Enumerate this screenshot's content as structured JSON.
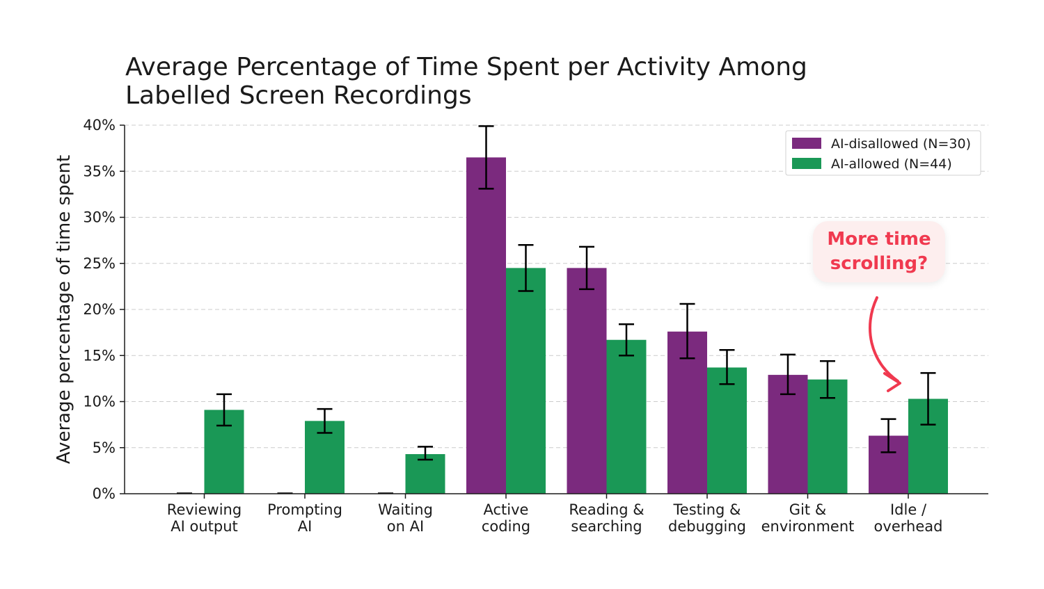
{
  "chart_data": {
    "type": "bar",
    "title_lines": [
      "Average Percentage of Time Spent per Activity Among",
      "Labelled Screen Recordings"
    ],
    "ylabel": "Average percentage of time spent",
    "xlabel": "",
    "ylim": [
      0,
      40
    ],
    "yticks": [
      "0%",
      "5%",
      "10%",
      "15%",
      "20%",
      "25%",
      "30%",
      "35%",
      "40%"
    ],
    "ytick_values": [
      0,
      5,
      10,
      15,
      20,
      25,
      30,
      35,
      40
    ],
    "grid": "horizontal dashed",
    "legend_position": "top-right",
    "categories": [
      [
        "Reviewing",
        "AI output"
      ],
      [
        "Prompting",
        "AI"
      ],
      [
        "Waiting",
        "on AI"
      ],
      [
        "Active",
        "coding"
      ],
      [
        "Reading &",
        "searching"
      ],
      [
        "Testing &",
        "debugging"
      ],
      [
        "Git &",
        "environment"
      ],
      [
        "Idle /",
        "overhead"
      ]
    ],
    "series": [
      {
        "name": "AI-disallowed (N=30)",
        "color": "#7b2a7e",
        "values": [
          0,
          0,
          0,
          36.5,
          24.5,
          17.6,
          12.9,
          6.3
        ],
        "err_low": [
          0,
          0,
          0,
          33.1,
          22.2,
          14.7,
          10.8,
          4.5
        ],
        "err_high": [
          0,
          0,
          0,
          39.9,
          26.8,
          20.6,
          15.1,
          8.1
        ]
      },
      {
        "name": "AI-allowed (N=44)",
        "color": "#1a9856",
        "values": [
          9.1,
          7.9,
          4.3,
          24.5,
          16.7,
          13.7,
          12.4,
          10.3
        ],
        "err_low": [
          7.4,
          6.6,
          3.7,
          22.0,
          15.0,
          11.9,
          10.4,
          7.5
        ],
        "err_high": [
          10.8,
          9.2,
          5.1,
          27.0,
          18.4,
          15.6,
          14.4,
          13.1
        ]
      }
    ]
  },
  "annotation": {
    "lines": [
      "More time",
      "scrolling?"
    ],
    "color": "#f0394f"
  }
}
